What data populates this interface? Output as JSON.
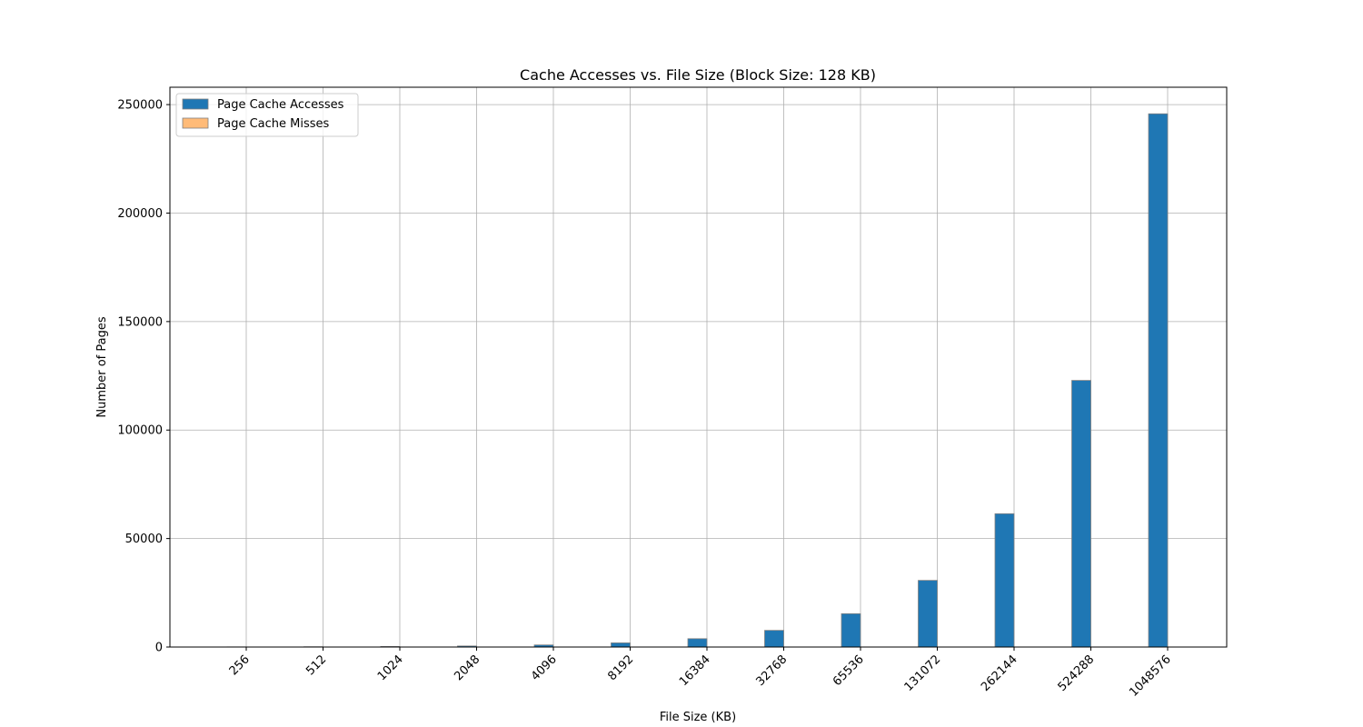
{
  "chart_data": {
    "type": "bar",
    "title": "Cache Accesses vs. File Size (Block Size: 128 KB)",
    "xlabel": "File Size (KB)",
    "ylabel": "Number of Pages",
    "categories": [
      "256",
      "512",
      "1024",
      "2048",
      "4096",
      "8192",
      "16384",
      "32768",
      "65536",
      "131072",
      "262144",
      "524288",
      "1048576"
    ],
    "series": [
      {
        "name": "Page Cache Accesses",
        "color": "#1f77b4",
        "values": [
          60,
          120,
          240,
          480,
          960,
          1920,
          3840,
          7680,
          15360,
          30720,
          61440,
          122880,
          245760
        ]
      },
      {
        "name": "Page Cache Misses",
        "color": "#ffbb78",
        "values": [
          0,
          0,
          0,
          0,
          0,
          0,
          0,
          0,
          0,
          0,
          0,
          0,
          0
        ]
      }
    ],
    "ylim": [
      0,
      258000
    ],
    "yticks": [
      0,
      50000,
      100000,
      150000,
      200000,
      250000
    ],
    "grid": true,
    "legend_position": "top-left"
  }
}
